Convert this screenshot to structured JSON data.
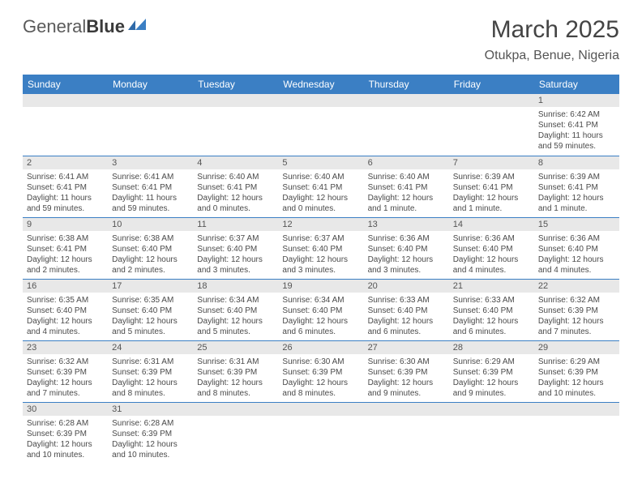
{
  "brand": {
    "part1": "General",
    "part2": "Blue"
  },
  "title": "March 2025",
  "location": "Otukpa, Benue, Nigeria",
  "colors": {
    "headerBg": "#3b7fc4",
    "headerText": "#ffffff",
    "dayNumBg": "#e8e8e8",
    "border": "#3b7fc4"
  },
  "weekdays": [
    "Sunday",
    "Monday",
    "Tuesday",
    "Wednesday",
    "Thursday",
    "Friday",
    "Saturday"
  ],
  "weeks": [
    [
      null,
      null,
      null,
      null,
      null,
      null,
      {
        "n": "1",
        "sr": "Sunrise: 6:42 AM",
        "ss": "Sunset: 6:41 PM",
        "dl": "Daylight: 11 hours and 59 minutes."
      }
    ],
    [
      {
        "n": "2",
        "sr": "Sunrise: 6:41 AM",
        "ss": "Sunset: 6:41 PM",
        "dl": "Daylight: 11 hours and 59 minutes."
      },
      {
        "n": "3",
        "sr": "Sunrise: 6:41 AM",
        "ss": "Sunset: 6:41 PM",
        "dl": "Daylight: 11 hours and 59 minutes."
      },
      {
        "n": "4",
        "sr": "Sunrise: 6:40 AM",
        "ss": "Sunset: 6:41 PM",
        "dl": "Daylight: 12 hours and 0 minutes."
      },
      {
        "n": "5",
        "sr": "Sunrise: 6:40 AM",
        "ss": "Sunset: 6:41 PM",
        "dl": "Daylight: 12 hours and 0 minutes."
      },
      {
        "n": "6",
        "sr": "Sunrise: 6:40 AM",
        "ss": "Sunset: 6:41 PM",
        "dl": "Daylight: 12 hours and 1 minute."
      },
      {
        "n": "7",
        "sr": "Sunrise: 6:39 AM",
        "ss": "Sunset: 6:41 PM",
        "dl": "Daylight: 12 hours and 1 minute."
      },
      {
        "n": "8",
        "sr": "Sunrise: 6:39 AM",
        "ss": "Sunset: 6:41 PM",
        "dl": "Daylight: 12 hours and 1 minute."
      }
    ],
    [
      {
        "n": "9",
        "sr": "Sunrise: 6:38 AM",
        "ss": "Sunset: 6:41 PM",
        "dl": "Daylight: 12 hours and 2 minutes."
      },
      {
        "n": "10",
        "sr": "Sunrise: 6:38 AM",
        "ss": "Sunset: 6:40 PM",
        "dl": "Daylight: 12 hours and 2 minutes."
      },
      {
        "n": "11",
        "sr": "Sunrise: 6:37 AM",
        "ss": "Sunset: 6:40 PM",
        "dl": "Daylight: 12 hours and 3 minutes."
      },
      {
        "n": "12",
        "sr": "Sunrise: 6:37 AM",
        "ss": "Sunset: 6:40 PM",
        "dl": "Daylight: 12 hours and 3 minutes."
      },
      {
        "n": "13",
        "sr": "Sunrise: 6:36 AM",
        "ss": "Sunset: 6:40 PM",
        "dl": "Daylight: 12 hours and 3 minutes."
      },
      {
        "n": "14",
        "sr": "Sunrise: 6:36 AM",
        "ss": "Sunset: 6:40 PM",
        "dl": "Daylight: 12 hours and 4 minutes."
      },
      {
        "n": "15",
        "sr": "Sunrise: 6:36 AM",
        "ss": "Sunset: 6:40 PM",
        "dl": "Daylight: 12 hours and 4 minutes."
      }
    ],
    [
      {
        "n": "16",
        "sr": "Sunrise: 6:35 AM",
        "ss": "Sunset: 6:40 PM",
        "dl": "Daylight: 12 hours and 4 minutes."
      },
      {
        "n": "17",
        "sr": "Sunrise: 6:35 AM",
        "ss": "Sunset: 6:40 PM",
        "dl": "Daylight: 12 hours and 5 minutes."
      },
      {
        "n": "18",
        "sr": "Sunrise: 6:34 AM",
        "ss": "Sunset: 6:40 PM",
        "dl": "Daylight: 12 hours and 5 minutes."
      },
      {
        "n": "19",
        "sr": "Sunrise: 6:34 AM",
        "ss": "Sunset: 6:40 PM",
        "dl": "Daylight: 12 hours and 6 minutes."
      },
      {
        "n": "20",
        "sr": "Sunrise: 6:33 AM",
        "ss": "Sunset: 6:40 PM",
        "dl": "Daylight: 12 hours and 6 minutes."
      },
      {
        "n": "21",
        "sr": "Sunrise: 6:33 AM",
        "ss": "Sunset: 6:40 PM",
        "dl": "Daylight: 12 hours and 6 minutes."
      },
      {
        "n": "22",
        "sr": "Sunrise: 6:32 AM",
        "ss": "Sunset: 6:39 PM",
        "dl": "Daylight: 12 hours and 7 minutes."
      }
    ],
    [
      {
        "n": "23",
        "sr": "Sunrise: 6:32 AM",
        "ss": "Sunset: 6:39 PM",
        "dl": "Daylight: 12 hours and 7 minutes."
      },
      {
        "n": "24",
        "sr": "Sunrise: 6:31 AM",
        "ss": "Sunset: 6:39 PM",
        "dl": "Daylight: 12 hours and 8 minutes."
      },
      {
        "n": "25",
        "sr": "Sunrise: 6:31 AM",
        "ss": "Sunset: 6:39 PM",
        "dl": "Daylight: 12 hours and 8 minutes."
      },
      {
        "n": "26",
        "sr": "Sunrise: 6:30 AM",
        "ss": "Sunset: 6:39 PM",
        "dl": "Daylight: 12 hours and 8 minutes."
      },
      {
        "n": "27",
        "sr": "Sunrise: 6:30 AM",
        "ss": "Sunset: 6:39 PM",
        "dl": "Daylight: 12 hours and 9 minutes."
      },
      {
        "n": "28",
        "sr": "Sunrise: 6:29 AM",
        "ss": "Sunset: 6:39 PM",
        "dl": "Daylight: 12 hours and 9 minutes."
      },
      {
        "n": "29",
        "sr": "Sunrise: 6:29 AM",
        "ss": "Sunset: 6:39 PM",
        "dl": "Daylight: 12 hours and 10 minutes."
      }
    ],
    [
      {
        "n": "30",
        "sr": "Sunrise: 6:28 AM",
        "ss": "Sunset: 6:39 PM",
        "dl": "Daylight: 12 hours and 10 minutes."
      },
      {
        "n": "31",
        "sr": "Sunrise: 6:28 AM",
        "ss": "Sunset: 6:39 PM",
        "dl": "Daylight: 12 hours and 10 minutes."
      },
      null,
      null,
      null,
      null,
      null
    ]
  ]
}
